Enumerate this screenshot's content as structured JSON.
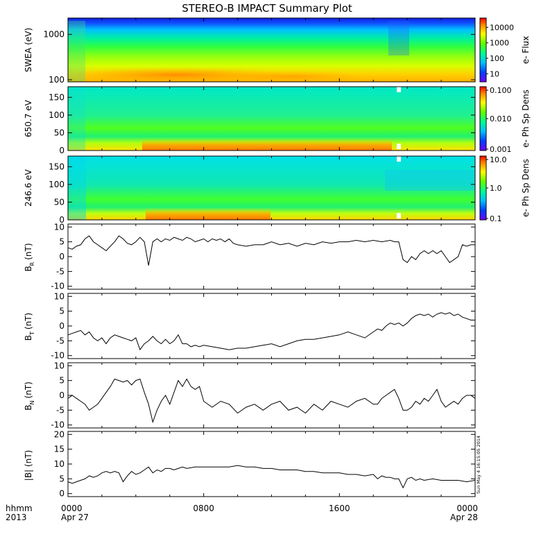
{
  "title": "STEREO-B IMPACT Summary Plot",
  "timestamp": "Sun May  4 16:15:05 2014",
  "x_axis": {
    "row1_label": "hhmm",
    "row2_label": "2013",
    "ticks": [
      {
        "t": 0,
        "row1": "0000",
        "row2": "Apr 27"
      },
      {
        "t": 8,
        "row1": "0800",
        "row2": ""
      },
      {
        "t": 16,
        "row1": "1600",
        "row2": ""
      },
      {
        "t": 24,
        "row1": "0000",
        "row2": "Apr 28"
      }
    ]
  },
  "chart_data": [
    {
      "type": "heatmap",
      "id": "swea",
      "ylabel": "SWEA (eV)",
      "ylog": true,
      "ylim": [
        90,
        2300
      ],
      "yticks": [
        {
          "v": 100,
          "label": "100"
        },
        {
          "v": 1000,
          "label": "1000"
        }
      ],
      "colorbar": {
        "label": "e- Flux",
        "log": true,
        "range": [
          3,
          40000
        ],
        "ticks": [
          {
            "v": 10,
            "label": "10"
          },
          {
            "v": 100,
            "label": "100"
          },
          {
            "v": 1000,
            "label": "1000"
          },
          {
            "v": 10000,
            "label": "10000"
          }
        ]
      }
    },
    {
      "type": "heatmap",
      "id": "pad650",
      "ylabel": "650.7 eV",
      "ylim": [
        0,
        180
      ],
      "yticks": [
        {
          "v": 0,
          "label": "0"
        },
        {
          "v": 50,
          "label": "50"
        },
        {
          "v": 100,
          "label": "100"
        },
        {
          "v": 150,
          "label": "150"
        }
      ],
      "colorbar": {
        "label": "e- Ph Sp Dens",
        "log": true,
        "range": [
          0.001,
          0.1
        ],
        "ticks": [
          {
            "v": 0.001,
            "label": "0.001"
          },
          {
            "v": 0.01,
            "label": "0.010"
          },
          {
            "v": 0.1,
            "label": "0.100"
          }
        ]
      }
    },
    {
      "type": "heatmap",
      "id": "pad246",
      "ylabel": "246.6 eV",
      "ylim": [
        0,
        180
      ],
      "yticks": [
        {
          "v": 0,
          "label": "0"
        },
        {
          "v": 50,
          "label": "50"
        },
        {
          "v": 100,
          "label": "100"
        },
        {
          "v": 150,
          "label": "150"
        }
      ],
      "colorbar": {
        "label": "e- Ph Sp Dens",
        "log": true,
        "range": [
          0.1,
          10
        ],
        "ticks": [
          {
            "v": 0.1,
            "label": "0.1"
          },
          {
            "v": 1,
            "label": "1.0"
          },
          {
            "v": 10,
            "label": "10.0"
          }
        ]
      }
    },
    {
      "type": "line",
      "id": "br",
      "ylabel": "B",
      "ylabel_sub": "R",
      "ylabel_unit": "(nT)",
      "ylim": [
        -11,
        11
      ],
      "yticks": [
        -10,
        -5,
        0,
        5,
        10
      ],
      "x": [
        0,
        0.25,
        0.5,
        0.75,
        1,
        1.25,
        1.5,
        1.75,
        2,
        2.25,
        2.5,
        2.75,
        3,
        3.25,
        3.5,
        3.75,
        4,
        4.25,
        4.5,
        4.75,
        5,
        5.25,
        5.5,
        5.75,
        6,
        6.25,
        6.5,
        6.75,
        7,
        7.25,
        7.5,
        7.75,
        8,
        8.25,
        8.5,
        8.75,
        9,
        9.25,
        9.5,
        9.75,
        10,
        10.5,
        11,
        11.5,
        12,
        12.5,
        13,
        13.5,
        14,
        14.5,
        15,
        15.5,
        16,
        16.5,
        17,
        17.5,
        18,
        18.5,
        19,
        19.25,
        19.5,
        19.75,
        20,
        20.25,
        20.5,
        20.75,
        21,
        21.25,
        21.5,
        21.75,
        22,
        22.25,
        22.5,
        22.75,
        23,
        23.25,
        23.5,
        23.75,
        24
      ],
      "y": [
        3,
        2.5,
        3.5,
        4,
        6,
        7,
        5,
        4,
        3,
        2,
        3.5,
        5,
        7,
        6,
        4.5,
        4,
        5,
        6.5,
        5,
        -3,
        5,
        6,
        5,
        6,
        5.5,
        6.5,
        6,
        5.5,
        6.5,
        6,
        5,
        5.5,
        6,
        5,
        6,
        5.5,
        6,
        5,
        6,
        4.5,
        4,
        3.5,
        4,
        4,
        5,
        4,
        4.5,
        3.5,
        4.5,
        4,
        5,
        4.5,
        5,
        5,
        5.5,
        5,
        5.5,
        5,
        5.5,
        5,
        5,
        -1,
        -2,
        0,
        -1,
        1,
        2,
        1,
        2,
        1,
        2,
        0,
        -2,
        -1,
        0,
        4,
        3.5,
        4,
        4
      ]
    },
    {
      "type": "line",
      "id": "bt",
      "ylabel": "B",
      "ylabel_sub": "T",
      "ylabel_unit": "(nT)",
      "ylim": [
        -11,
        11
      ],
      "yticks": [
        -10,
        -5,
        0,
        5,
        10
      ],
      "x": [
        0,
        0.25,
        0.5,
        0.75,
        1,
        1.25,
        1.5,
        1.75,
        2,
        2.25,
        2.5,
        2.75,
        3,
        3.25,
        3.5,
        3.75,
        4,
        4.25,
        4.5,
        4.75,
        5,
        5.25,
        5.5,
        5.75,
        6,
        6.25,
        6.5,
        6.75,
        7,
        7.25,
        7.5,
        7.75,
        8,
        8.5,
        9,
        9.5,
        10,
        10.5,
        11,
        11.5,
        12,
        12.5,
        13,
        13.5,
        14,
        14.5,
        15,
        15.5,
        16,
        16.5,
        17,
        17.5,
        18,
        18.25,
        18.5,
        18.75,
        19,
        19.25,
        19.5,
        19.75,
        20,
        20.25,
        20.5,
        20.75,
        21,
        21.25,
        21.5,
        21.75,
        22,
        22.25,
        22.5,
        22.75,
        23,
        23.25,
        23.5,
        23.75,
        24
      ],
      "y": [
        -3,
        -2.5,
        -2,
        -1.5,
        -3,
        -2,
        -4,
        -5,
        -4,
        -6,
        -4,
        -3,
        -3.5,
        -4,
        -4.5,
        -5,
        -4,
        -8,
        -6,
        -5,
        -3.5,
        -5,
        -6,
        -4.5,
        -6,
        -5,
        -3,
        -6,
        -6,
        -7,
        -6.5,
        -7,
        -6.5,
        -7,
        -7.5,
        -8,
        -7.5,
        -7.5,
        -7,
        -6.5,
        -6,
        -7,
        -6,
        -5,
        -4.5,
        -4.5,
        -4,
        -3.5,
        -3,
        -2,
        -3,
        -4,
        -2,
        -1,
        -1.5,
        0,
        1,
        0.5,
        1,
        0,
        1,
        2.5,
        3.5,
        4,
        3.5,
        4,
        3,
        4,
        4.5,
        4,
        4.5,
        3.5,
        4,
        3,
        2.5,
        2,
        2
      ]
    },
    {
      "type": "line",
      "id": "bn",
      "ylabel": "B",
      "ylabel_sub": "N",
      "ylabel_unit": "(nT)",
      "ylim": [
        -11,
        11
      ],
      "yticks": [
        -10,
        -5,
        0,
        5,
        10
      ],
      "x": [
        0,
        0.25,
        0.5,
        0.75,
        1,
        1.25,
        1.5,
        1.75,
        2,
        2.25,
        2.5,
        2.75,
        3,
        3.25,
        3.5,
        3.75,
        4,
        4.25,
        4.5,
        4.75,
        5,
        5.25,
        5.5,
        5.75,
        6,
        6.25,
        6.5,
        6.75,
        7,
        7.25,
        7.5,
        7.75,
        8,
        8.5,
        9,
        9.5,
        10,
        10.5,
        11,
        11.5,
        12,
        12.5,
        13,
        13.5,
        14,
        14.5,
        15,
        15.5,
        16,
        16.5,
        17,
        17.5,
        18,
        18.25,
        18.5,
        18.75,
        19,
        19.25,
        19.5,
        19.75,
        20,
        20.25,
        20.5,
        20.75,
        21,
        21.25,
        21.5,
        21.75,
        22,
        22.25,
        22.5,
        22.75,
        23,
        23.25,
        23.5,
        23.75,
        24
      ],
      "y": [
        -1,
        0,
        -1,
        -2,
        -3,
        -5,
        -4,
        -3,
        -1,
        1,
        3,
        5.5,
        5,
        4.5,
        5,
        3.5,
        5,
        5.5,
        1,
        -3,
        -9,
        -5,
        -2,
        0,
        -3,
        1,
        5,
        3,
        5.5,
        3,
        2,
        3,
        -2,
        -4,
        -2,
        -3,
        -6,
        -4,
        -3,
        -5,
        -3,
        -2,
        -5,
        -4,
        -6,
        -3,
        -5,
        -2,
        -3,
        -4,
        -2,
        -1,
        -3,
        -3,
        -1,
        0,
        1,
        2,
        -1,
        -5,
        -5,
        -4,
        -2,
        -3,
        -1,
        -2,
        0,
        2,
        -2,
        -4,
        -3,
        -2,
        -3,
        -1,
        0,
        0,
        -1
      ]
    },
    {
      "type": "line",
      "id": "bmag",
      "ylabel": "|B| (nT)",
      "ylim": [
        -1,
        21
      ],
      "yticks": [
        0,
        5,
        10,
        15,
        20
      ],
      "x": [
        0,
        0.25,
        0.5,
        0.75,
        1,
        1.25,
        1.5,
        1.75,
        2,
        2.25,
        2.5,
        2.75,
        3,
        3.25,
        3.5,
        3.75,
        4,
        4.25,
        4.5,
        4.75,
        5,
        5.25,
        5.5,
        5.75,
        6,
        6.25,
        6.5,
        6.75,
        7,
        7.5,
        8,
        8.5,
        9,
        9.5,
        10,
        10.5,
        11,
        11.5,
        12,
        12.5,
        13,
        13.5,
        14,
        14.5,
        15,
        15.5,
        16,
        16.5,
        17,
        17.5,
        18,
        18.25,
        18.5,
        18.75,
        19,
        19.25,
        19.5,
        19.75,
        20,
        20.25,
        20.5,
        20.75,
        21,
        21.5,
        22,
        22.5,
        23,
        23.5,
        24
      ],
      "y": [
        4,
        3.5,
        4,
        4.5,
        5,
        6,
        5.5,
        6,
        7,
        7.5,
        7,
        7.5,
        7,
        4,
        6,
        7.5,
        6.5,
        7,
        8,
        9,
        7,
        8,
        7.5,
        8.5,
        8.5,
        8,
        8.5,
        9,
        8.5,
        9,
        9,
        9,
        9,
        9,
        9.5,
        9,
        9,
        8.5,
        8.5,
        8,
        8,
        8,
        7.5,
        7.5,
        7,
        7,
        7,
        6.5,
        6.5,
        6,
        6.5,
        5,
        6,
        5.5,
        5.5,
        5,
        5,
        2,
        5,
        5.5,
        4.5,
        5,
        4.5,
        5,
        4.5,
        4.5,
        4.5,
        4,
        4.5
      ]
    }
  ]
}
